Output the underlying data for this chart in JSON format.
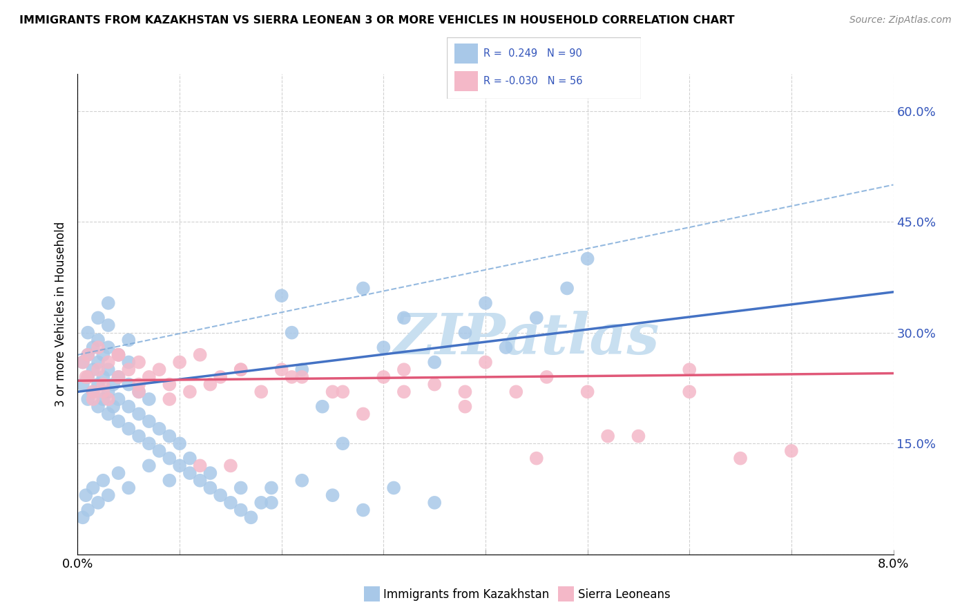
{
  "title": "IMMIGRANTS FROM KAZAKHSTAN VS SIERRA LEONEAN 3 OR MORE VEHICLES IN HOUSEHOLD CORRELATION CHART",
  "source": "Source: ZipAtlas.com",
  "ylabel": "3 or more Vehicles in Household",
  "x_min": 0.0,
  "x_max": 0.08,
  "y_min": 0.0,
  "y_max": 0.65,
  "x_ticks": [
    0.0,
    0.01,
    0.02,
    0.03,
    0.04,
    0.05,
    0.06,
    0.07,
    0.08
  ],
  "y_ticks": [
    0.0,
    0.15,
    0.3,
    0.45,
    0.6
  ],
  "blue_color": "#a8c8e8",
  "blue_line_color": "#4472c4",
  "pink_color": "#f4b8c8",
  "pink_line_color": "#e05878",
  "dashed_line_color": "#7aa8d8",
  "watermark_color": "#c8dff0",
  "blue_line_y0": 0.22,
  "blue_line_y1": 0.355,
  "pink_line_y0": 0.235,
  "pink_line_y1": 0.245,
  "dash_line_x0": 0.0,
  "dash_line_y0": 0.27,
  "dash_line_x1": 0.08,
  "dash_line_y1": 0.5,
  "blue_scatter_x": [
    0.0005,
    0.0005,
    0.001,
    0.001,
    0.001,
    0.001,
    0.0015,
    0.0015,
    0.0015,
    0.002,
    0.002,
    0.002,
    0.002,
    0.002,
    0.0025,
    0.0025,
    0.0025,
    0.003,
    0.003,
    0.003,
    0.003,
    0.003,
    0.003,
    0.0035,
    0.0035,
    0.004,
    0.004,
    0.004,
    0.004,
    0.005,
    0.005,
    0.005,
    0.005,
    0.005,
    0.006,
    0.006,
    0.006,
    0.007,
    0.007,
    0.007,
    0.008,
    0.008,
    0.009,
    0.009,
    0.01,
    0.01,
    0.011,
    0.012,
    0.013,
    0.014,
    0.015,
    0.016,
    0.017,
    0.018,
    0.019,
    0.02,
    0.021,
    0.022,
    0.024,
    0.026,
    0.028,
    0.03,
    0.032,
    0.035,
    0.038,
    0.04,
    0.042,
    0.045,
    0.048,
    0.05,
    0.0005,
    0.0008,
    0.001,
    0.0015,
    0.002,
    0.0025,
    0.003,
    0.004,
    0.005,
    0.007,
    0.009,
    0.011,
    0.013,
    0.016,
    0.019,
    0.022,
    0.025,
    0.028,
    0.031,
    0.035
  ],
  "blue_scatter_y": [
    0.23,
    0.26,
    0.21,
    0.24,
    0.27,
    0.3,
    0.22,
    0.25,
    0.28,
    0.2,
    0.23,
    0.26,
    0.29,
    0.32,
    0.21,
    0.24,
    0.27,
    0.19,
    0.22,
    0.25,
    0.28,
    0.31,
    0.34,
    0.2,
    0.23,
    0.18,
    0.21,
    0.24,
    0.27,
    0.17,
    0.2,
    0.23,
    0.26,
    0.29,
    0.16,
    0.19,
    0.22,
    0.15,
    0.18,
    0.21,
    0.14,
    0.17,
    0.13,
    0.16,
    0.12,
    0.15,
    0.11,
    0.1,
    0.09,
    0.08,
    0.07,
    0.06,
    0.05,
    0.07,
    0.09,
    0.35,
    0.3,
    0.25,
    0.2,
    0.15,
    0.36,
    0.28,
    0.32,
    0.26,
    0.3,
    0.34,
    0.28,
    0.32,
    0.36,
    0.4,
    0.05,
    0.08,
    0.06,
    0.09,
    0.07,
    0.1,
    0.08,
    0.11,
    0.09,
    0.12,
    0.1,
    0.13,
    0.11,
    0.09,
    0.07,
    0.1,
    0.08,
    0.06,
    0.09,
    0.07
  ],
  "pink_scatter_x": [
    0.0005,
    0.001,
    0.001,
    0.0015,
    0.002,
    0.002,
    0.0025,
    0.003,
    0.003,
    0.004,
    0.004,
    0.005,
    0.006,
    0.006,
    0.007,
    0.008,
    0.009,
    0.01,
    0.011,
    0.012,
    0.013,
    0.014,
    0.015,
    0.016,
    0.018,
    0.02,
    0.022,
    0.025,
    0.028,
    0.03,
    0.032,
    0.035,
    0.038,
    0.04,
    0.043,
    0.046,
    0.05,
    0.055,
    0.06,
    0.065,
    0.07,
    0.0008,
    0.0015,
    0.0025,
    0.004,
    0.006,
    0.009,
    0.012,
    0.016,
    0.021,
    0.026,
    0.032,
    0.038,
    0.045,
    0.052,
    0.06
  ],
  "pink_scatter_y": [
    0.26,
    0.24,
    0.27,
    0.22,
    0.25,
    0.28,
    0.23,
    0.26,
    0.21,
    0.27,
    0.24,
    0.25,
    0.26,
    0.23,
    0.24,
    0.25,
    0.23,
    0.26,
    0.22,
    0.27,
    0.23,
    0.24,
    0.12,
    0.25,
    0.22,
    0.25,
    0.24,
    0.22,
    0.19,
    0.24,
    0.22,
    0.23,
    0.2,
    0.26,
    0.22,
    0.24,
    0.22,
    0.16,
    0.22,
    0.13,
    0.14,
    0.24,
    0.21,
    0.22,
    0.27,
    0.22,
    0.21,
    0.12,
    0.25,
    0.24,
    0.22,
    0.25,
    0.22,
    0.13,
    0.16,
    0.25
  ]
}
